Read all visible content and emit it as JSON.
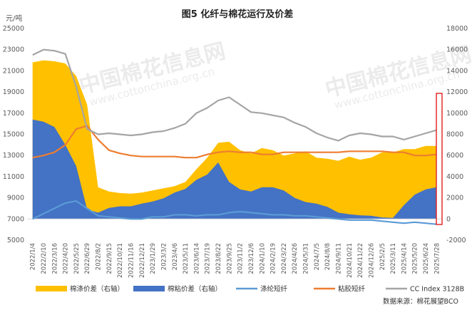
{
  "chart_data": {
    "type": "area",
    "title": "图5 化纤与棉花运行及价差",
    "y_left_unit": "元/吨",
    "y_left_lim": [
      5000,
      25000
    ],
    "y_left_ticks": [
      5000,
      7000,
      9000,
      11000,
      13000,
      15000,
      17000,
      19000,
      21000,
      23000,
      25000
    ],
    "y_right_lim": [
      -2000,
      18000
    ],
    "y_right_ticks": [
      -2000,
      0,
      2000,
      4000,
      6000,
      8000,
      10000,
      12000,
      14000,
      16000,
      18000
    ],
    "x_labels": [
      "2022/1/4",
      "2022/2/10",
      "2022/3/16",
      "2022/4/20",
      "2022/5/25",
      "2022/6/29",
      "2022/8/2",
      "2022/9/15",
      "2022/10/21",
      "2022/11/16",
      "2022/12/21",
      "2023/1/29",
      "2023/3/2",
      "2023/4/6",
      "2023/5/11",
      "2023/6/14",
      "2023/7/19",
      "2023/8/22",
      "2023/9/25",
      "2023/11/2",
      "2023/12/6",
      "2024/1/10",
      "2024/2/19",
      "2024/3/22",
      "2024/4/26",
      "2024/5/31",
      "2024/7/5",
      "2024/8/8",
      "2024/9/11",
      "2024/10/21",
      "2024/11/22",
      "2024/12/26",
      "2025/2/5",
      "2025/3/11",
      "2025/4/14",
      "2025/5/20",
      "2025/6/24",
      "2025/7/28"
    ],
    "grid": false,
    "legend_position": "bottom",
    "series": [
      {
        "name": "棉涤价差（右轴）",
        "axis": "right",
        "kind": "area",
        "color": "#FFC000",
        "values": [
          14800,
          15000,
          14900,
          14700,
          13500,
          10800,
          3000,
          2600,
          2450,
          2400,
          2500,
          2700,
          2900,
          3100,
          3500,
          4700,
          5800,
          7200,
          7300,
          6500,
          6200,
          6700,
          6500,
          6000,
          6200,
          6400,
          5800,
          5700,
          5500,
          5900,
          5600,
          5800,
          6300,
          6300,
          6600,
          6600,
          6900,
          6900
        ]
      },
      {
        "name": "棉粘价差（右轴）",
        "axis": "right",
        "kind": "area",
        "color": "#4472C4",
        "values": [
          9400,
          9200,
          8700,
          7000,
          5000,
          900,
          600,
          1050,
          1200,
          1200,
          1450,
          1650,
          1950,
          2500,
          2850,
          3700,
          4200,
          5350,
          3500,
          2800,
          2600,
          3000,
          3000,
          2700,
          2000,
          1600,
          1450,
          1150,
          600,
          450,
          350,
          300,
          150,
          100,
          1300,
          2300,
          2800,
          3000
        ]
      },
      {
        "name": "涤纶短纤",
        "axis": "left",
        "kind": "line",
        "color": "#5B9BD5",
        "values": [
          7000,
          7500,
          8000,
          8500,
          8700,
          8000,
          7300,
          7200,
          7100,
          7000,
          7000,
          7200,
          7200,
          7400,
          7400,
          7300,
          7400,
          7400,
          7600,
          7700,
          7600,
          7500,
          7400,
          7400,
          7300,
          7300,
          7200,
          7100,
          7000,
          6900,
          6900,
          6900,
          6800,
          6700,
          6600,
          6700,
          6600,
          6500
        ]
      },
      {
        "name": "粘胶短纤",
        "axis": "left",
        "kind": "line",
        "color": "#ED7D31",
        "values": [
          12800,
          13000,
          13300,
          14000,
          15500,
          15800,
          14500,
          13500,
          13200,
          13000,
          12900,
          12900,
          12900,
          12900,
          12800,
          12800,
          13100,
          13300,
          13400,
          13300,
          13300,
          13100,
          13100,
          13300,
          13300,
          13300,
          13300,
          13300,
          13300,
          13400,
          13400,
          13400,
          13400,
          13300,
          13300,
          13000,
          13000,
          13100
        ]
      },
      {
        "name": "CC Index 3128B",
        "axis": "left",
        "kind": "line",
        "color": "#A5A5A5",
        "values": [
          22500,
          23000,
          22900,
          22600,
          19500,
          15500,
          15000,
          15100,
          15000,
          14900,
          15000,
          15200,
          15300,
          15600,
          16000,
          17000,
          17500,
          18200,
          18500,
          17800,
          17100,
          17000,
          16800,
          16600,
          16100,
          15700,
          15100,
          14700,
          14400,
          14900,
          15100,
          15000,
          14800,
          14800,
          14500,
          14800,
          15100,
          15400
        ]
      }
    ]
  },
  "source_text": "数据来源：棉花展望BCO",
  "watermark_cn": "中国棉花信息网",
  "watermark_en": "www.cottonchina.org.cn"
}
